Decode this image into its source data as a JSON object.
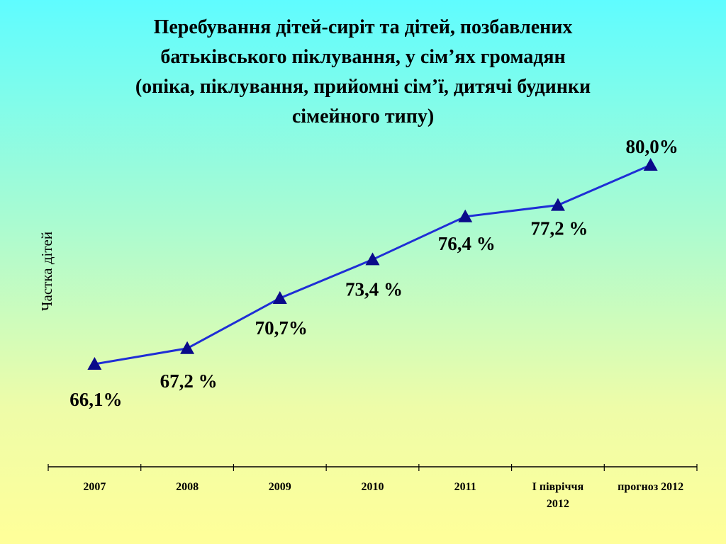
{
  "chart_data": {
    "type": "line",
    "title": "Перебування дітей-сиріт та дітей, позбавлених\nбатьківського піклування, у сім’ях громадян\n(опіка, піклування, прийомні сім’ї, дитячі будинки\nсімейного типу)",
    "y_label": "Частка дітей",
    "categories": [
      "2007",
      "2008",
      "2009",
      "2010",
      "2011",
      "І півріччя\n2012",
      "прогноз 2012"
    ],
    "series": [
      {
        "name": null,
        "color": "#1f2ed6",
        "marker_color": "#0a0a8a",
        "values": [
          66.1,
          67.2,
          70.7,
          73.4,
          76.4,
          77.2,
          80.0
        ],
        "value_labels": [
          "66,1%",
          "67,2 %",
          "70,7%",
          "73,4 %",
          "76,4 %",
          "77,2 %",
          "80,0%"
        ]
      }
    ]
  }
}
